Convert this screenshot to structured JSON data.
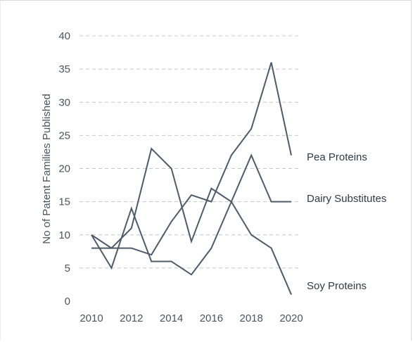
{
  "chart_data": {
    "type": "line",
    "title": "",
    "xlabel": "",
    "ylabel": "No of Patent Families Published",
    "x": [
      2010,
      2011,
      2012,
      2013,
      2014,
      2015,
      2016,
      2017,
      2018,
      2019,
      2020
    ],
    "x_ticks": [
      "2010",
      "2012",
      "2014",
      "2016",
      "2018",
      "2020"
    ],
    "y_ticks": [
      "0",
      "5",
      "10",
      "15",
      "20",
      "25",
      "30",
      "35",
      "40"
    ],
    "ylim": [
      0,
      40
    ],
    "grid": true,
    "legend": "labels at line ends, right",
    "series": [
      {
        "name": "Pea Proteins",
        "values": [
          10,
          8,
          11,
          23,
          20,
          9,
          17,
          15,
          22,
          15,
          15
        ]
      },
      {
        "name": "Dairy Substitutes",
        "values": [
          8,
          8,
          8,
          7,
          12,
          16,
          15,
          22,
          26,
          36,
          22
        ]
      },
      {
        "name": "Soy Proteins",
        "values": [
          10,
          5,
          14,
          6,
          6,
          4,
          8,
          15,
          10,
          8,
          1
        ]
      }
    ],
    "line_color": "#4d5b6a"
  }
}
